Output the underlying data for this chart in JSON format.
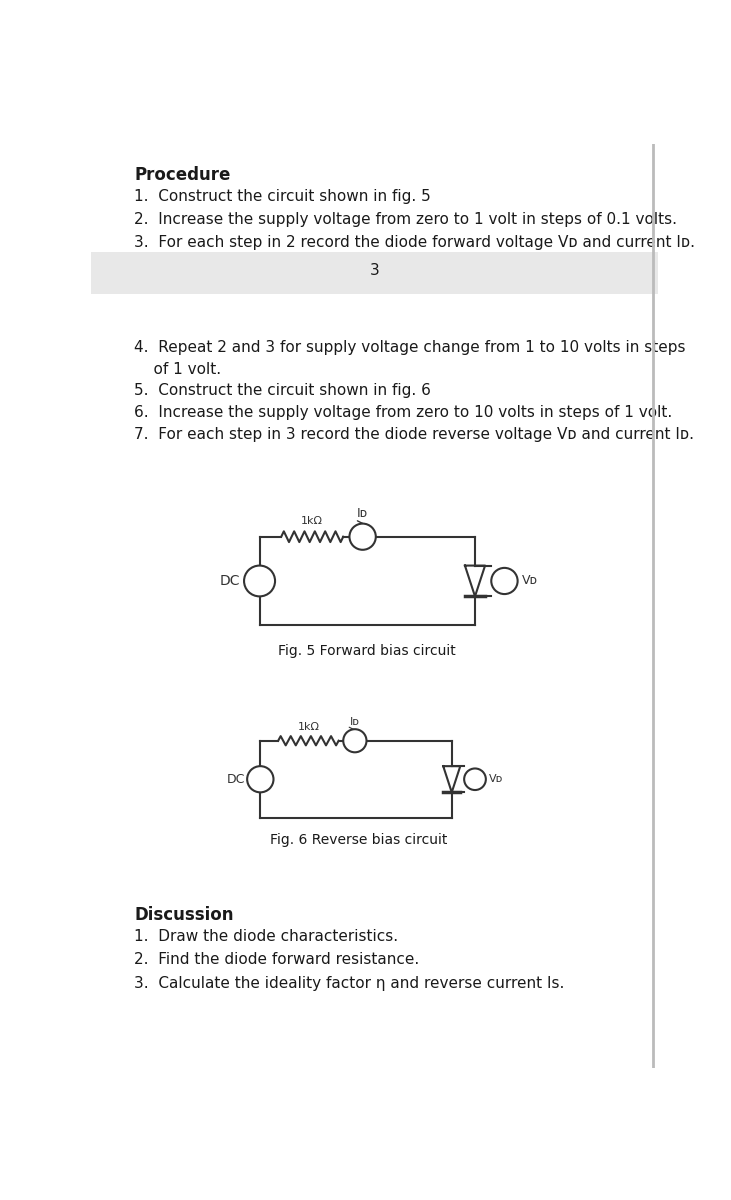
{
  "bg_color": "#ffffff",
  "text_color": "#1a1a1a",
  "procedure_title": "Procedure",
  "page_number": "3",
  "gray_band_color": "#e8e8e8",
  "fig5_caption": "Fig. 5 Forward bias circuit",
  "fig6_caption": "Fig. 6 Reverse bias circuit",
  "discussion_title": "Discussion",
  "line_color": "#333333",
  "lw": 1.5
}
